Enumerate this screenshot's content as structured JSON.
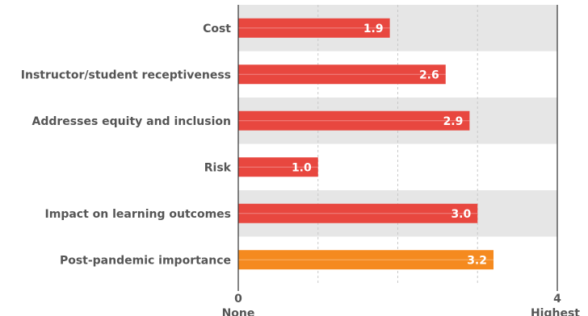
{
  "chart_data": {
    "type": "bar",
    "orientation": "horizontal",
    "categories": [
      "Cost",
      "Instructor/student receptiveness",
      "Addresses equity and inclusion",
      "Risk",
      "Impact on learning outcomes",
      "Post-pandemic importance"
    ],
    "values": [
      1.9,
      2.6,
      2.9,
      1.0,
      3.0,
      3.2
    ],
    "value_labels": [
      "1.9",
      "2.6",
      "2.9",
      "1.0",
      "3.0",
      "3.2"
    ],
    "xlim": [
      0,
      4
    ],
    "x_ticks": [
      {
        "value": 0,
        "number": "0",
        "text": "None"
      },
      {
        "value": 4,
        "number": "4",
        "text": "Highest"
      }
    ],
    "gridlines": [
      1,
      2,
      3
    ],
    "grid": true,
    "legend": "none",
    "colors": {
      "bar": "#e8473f",
      "highlight_bar": "#f58a1f",
      "band": "#e6e6e6",
      "text": "#555555",
      "value_text": "#ffffff"
    },
    "highlight_index": 5
  }
}
